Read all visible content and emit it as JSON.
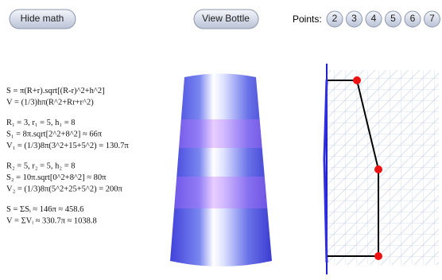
{
  "toolbar": {
    "hide_math": "Hide math",
    "view_bottle": "View Bottle",
    "points_label": "Points:",
    "points_options": [
      "2",
      "3",
      "4",
      "5",
      "6",
      "7"
    ]
  },
  "math": {
    "groups": [
      [
        "S = π(R+r).sqrt[(R-r)^2+h^2]",
        "V = (1/3)hπ(R^2+Rr+r^2)"
      ],
      [
        "R₁ = 3,  r₁ = 5,  h₁ = 8",
        "S₁ = 8π.sqrt[2^2+8^2] ≈ 66π",
        "V₁ = (1/3)8π(3^2+15+5^2) = 130.7π"
      ],
      [
        "R₂ = 5,  r₂ = 5,  h₂ = 8",
        "S₂ = 10π.sqrt[0^2+8^2] ≈ 80π",
        "V₂ = (1/3)8π(5^2+25+5^2) = 200π"
      ],
      [
        "S = ΣSᵢ ≈ 146π ≈ 458.6",
        "V = ΣVᵢ ≈ 330.7π ≈ 1038.8"
      ]
    ]
  }
}
